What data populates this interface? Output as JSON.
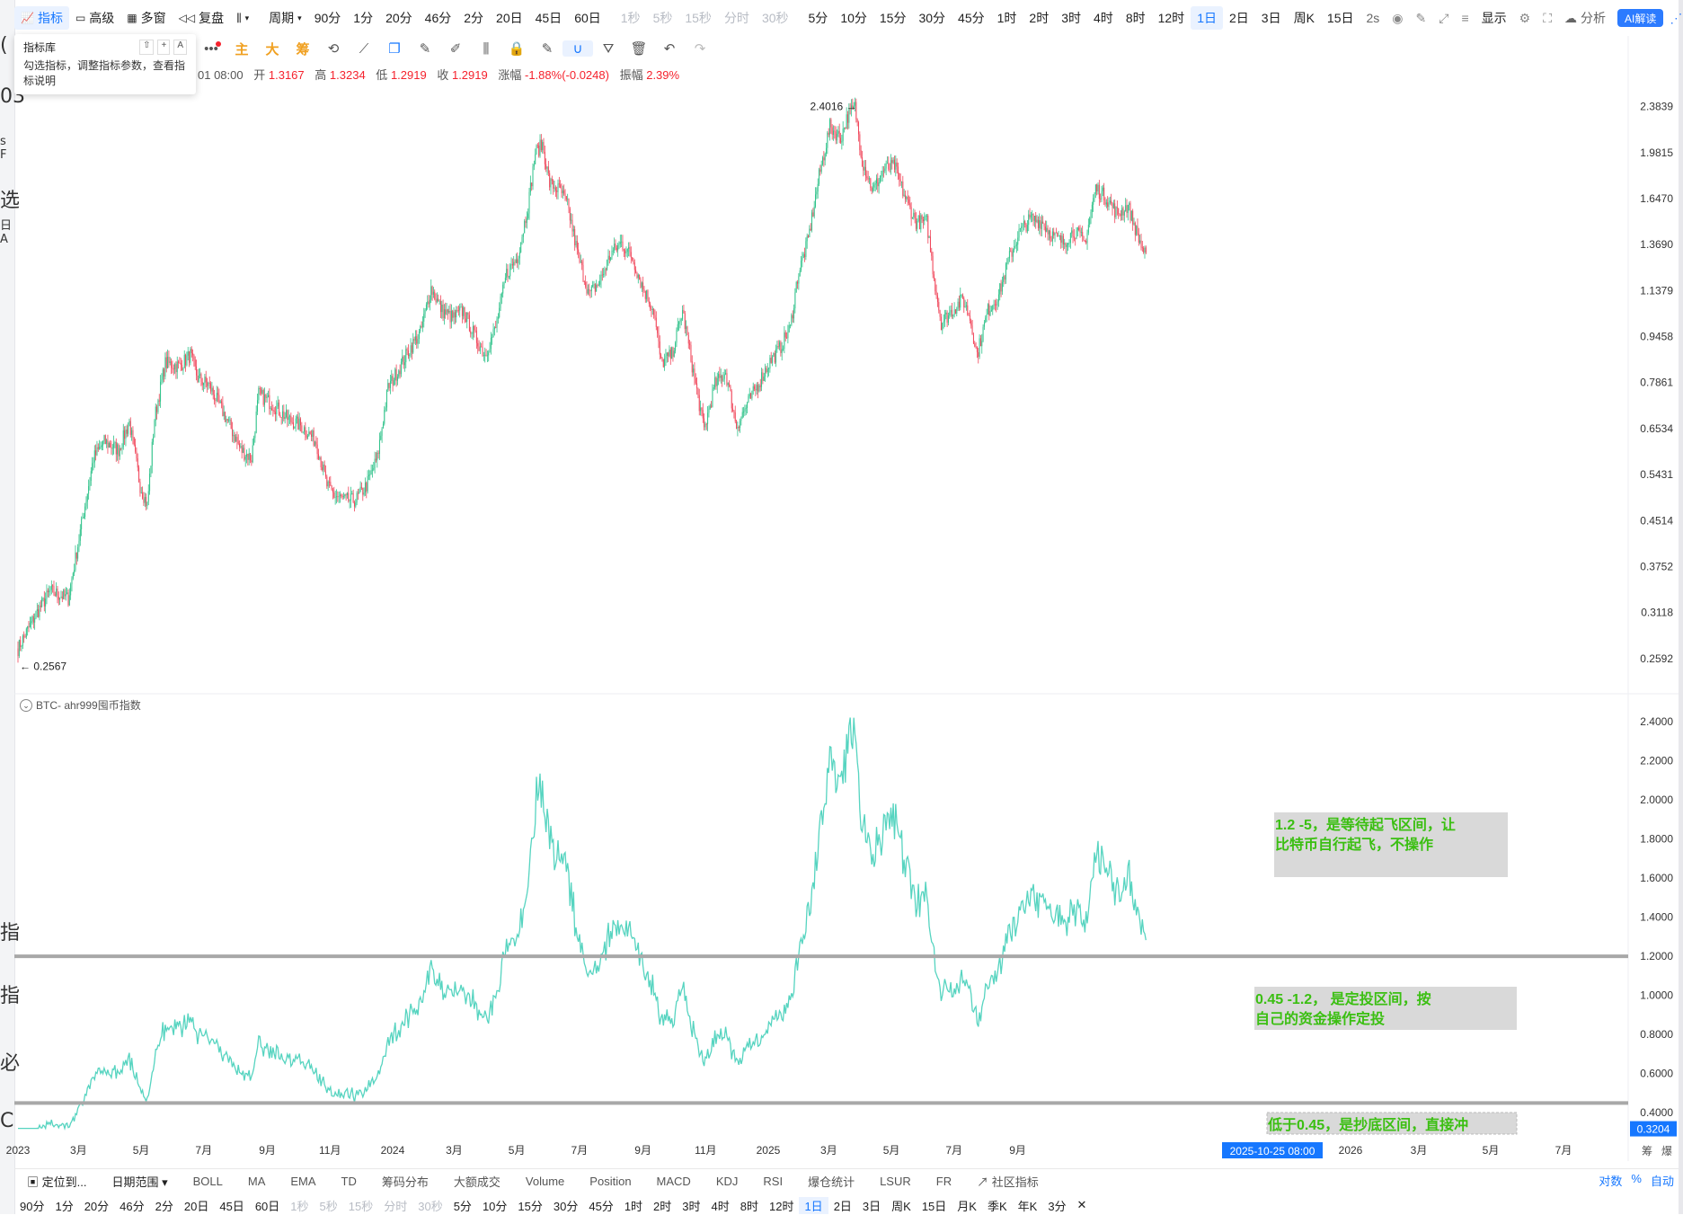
{
  "left_fragments": [
    "(",
    "03",
    "s F",
    "选",
    "日 A",
    "指",
    "指",
    "必",
    "C"
  ],
  "toolbar": {
    "items": [
      {
        "label": "指标",
        "icon": "chart-icon",
        "state": "active"
      },
      {
        "label": "高级",
        "icon": "layout-icon"
      },
      {
        "label": "多窗",
        "icon": "grid-icon"
      },
      {
        "label": "复盘",
        "icon": "rewind-icon"
      },
      {
        "label": "",
        "icon": "candle-type-icon",
        "caret": true
      },
      {
        "label": "周期",
        "caret": true
      },
      {
        "label": "90分"
      },
      {
        "label": "1分"
      },
      {
        "label": "20分"
      },
      {
        "label": "46分"
      },
      {
        "label": "2分"
      },
      {
        "label": "20日"
      },
      {
        "label": "45日"
      },
      {
        "label": "60日"
      },
      {
        "label": "1秒",
        "dim": true
      },
      {
        "label": "5秒",
        "dim": true
      },
      {
        "label": "15秒",
        "dim": true
      },
      {
        "label": "分时",
        "dim": true
      },
      {
        "label": "30秒",
        "dim": true
      },
      {
        "label": "5分"
      },
      {
        "label": "10分"
      },
      {
        "label": "15分"
      },
      {
        "label": "30分"
      },
      {
        "label": "45分"
      },
      {
        "label": "1时"
      },
      {
        "label": "2时"
      },
      {
        "label": "3时"
      },
      {
        "label": "4时"
      },
      {
        "label": "8时"
      },
      {
        "label": "12时"
      },
      {
        "label": "1日",
        "state": "active"
      },
      {
        "label": "2日"
      },
      {
        "label": "3日"
      },
      {
        "label": "周K"
      },
      {
        "label": "15日"
      }
    ],
    "right": {
      "refresh": "2s",
      "display": "显示",
      "analysis": "分析",
      "ai": "AI解读"
    }
  },
  "drawing_tools": [
    "主",
    "大",
    "筹"
  ],
  "popup": {
    "title": "指标库",
    "keys": [
      "⇧",
      "+",
      "A"
    ],
    "desc": "勾选指标，调整指标参数，查看指标说明"
  },
  "ohlc": {
    "time": "01 08:00",
    "open_label": "开",
    "open": "1.3167",
    "high_label": "高",
    "high": "1.3234",
    "low_label": "低",
    "low": "1.2919",
    "close_label": "收",
    "close": "1.2919",
    "chg_label": "涨幅",
    "chg": "-1.88%(-0.0248)",
    "amp_label": "振幅",
    "amp": "2.39%"
  },
  "indicator_label": "BTC- ahr999囤币指数",
  "chart_data": [
    {
      "type": "candlestick",
      "scale": "log",
      "ylim": [
        0.235,
        2.55
      ],
      "yticks": [
        "2.3839",
        "1.9815",
        "1.6470",
        "1.3690",
        "1.1379",
        "0.9458",
        "0.7861",
        "0.6534",
        "0.5431",
        "0.4514",
        "0.3752",
        "0.3118",
        "0.2592"
      ],
      "max_label": "2.4016 →",
      "min_label": "← 0.2567",
      "series_points": [
        [
          0,
          0.27
        ],
        [
          5,
          0.31
        ],
        [
          9,
          0.34
        ],
        [
          14,
          0.33
        ],
        [
          17,
          0.42
        ],
        [
          21,
          0.58
        ],
        [
          24,
          0.62
        ],
        [
          28,
          0.6
        ],
        [
          31,
          0.67
        ],
        [
          34,
          0.52
        ],
        [
          36,
          0.48
        ],
        [
          38,
          0.68
        ],
        [
          41,
          0.85
        ],
        [
          45,
          0.84
        ],
        [
          48,
          0.88
        ],
        [
          50,
          0.8
        ],
        [
          53,
          0.78
        ],
        [
          56,
          0.72
        ],
        [
          59,
          0.66
        ],
        [
          62,
          0.6
        ],
        [
          65,
          0.58
        ],
        [
          67,
          0.75
        ],
        [
          71,
          0.72
        ],
        [
          75,
          0.68
        ],
        [
          79,
          0.66
        ],
        [
          83,
          0.62
        ],
        [
          86,
          0.52
        ],
        [
          88,
          0.5
        ],
        [
          91,
          0.49
        ],
        [
          94,
          0.49
        ],
        [
          97,
          0.52
        ],
        [
          100,
          0.58
        ],
        [
          103,
          0.77
        ],
        [
          106,
          0.83
        ],
        [
          109,
          0.9
        ],
        [
          112,
          0.96
        ],
        [
          115,
          1.15
        ],
        [
          118,
          1.05
        ],
        [
          121,
          1.02
        ],
        [
          124,
          1.05
        ],
        [
          127,
          0.95
        ],
        [
          130,
          0.88
        ],
        [
          133,
          0.98
        ],
        [
          136,
          1.22
        ],
        [
          139,
          1.3
        ],
        [
          142,
          1.6
        ],
        [
          144,
          1.98
        ],
        [
          146,
          2.05
        ],
        [
          148,
          1.75
        ],
        [
          151,
          1.7
        ],
        [
          153,
          1.6
        ],
        [
          156,
          1.3
        ],
        [
          159,
          1.12
        ],
        [
          162,
          1.18
        ],
        [
          165,
          1.32
        ],
        [
          168,
          1.38
        ],
        [
          171,
          1.3
        ],
        [
          174,
          1.15
        ],
        [
          177,
          1.05
        ],
        [
          179,
          0.85
        ],
        [
          182,
          0.88
        ],
        [
          185,
          1.05
        ],
        [
          188,
          0.82
        ],
        [
          191,
          0.65
        ],
        [
          194,
          0.78
        ],
        [
          197,
          0.82
        ],
        [
          200,
          0.66
        ],
        [
          203,
          0.72
        ],
        [
          206,
          0.78
        ],
        [
          209,
          0.85
        ],
        [
          212,
          0.9
        ],
        [
          215,
          0.98
        ],
        [
          217,
          1.2
        ],
        [
          220,
          1.4
        ],
        [
          223,
          1.8
        ],
        [
          226,
          2.2
        ],
        [
          229,
          2.1
        ],
        [
          231,
          2.3
        ],
        [
          233,
          2.38
        ],
        [
          235,
          1.92
        ],
        [
          238,
          1.7
        ],
        [
          241,
          1.85
        ],
        [
          244,
          1.88
        ],
        [
          247,
          1.65
        ],
        [
          250,
          1.5
        ],
        [
          253,
          1.5
        ],
        [
          255,
          1.2
        ],
        [
          257,
          1.0
        ],
        [
          260,
          1.05
        ],
        [
          263,
          1.1
        ],
        [
          265,
          1.02
        ],
        [
          267,
          0.88
        ],
        [
          270,
          1.05
        ],
        [
          273,
          1.12
        ],
        [
          276,
          1.3
        ],
        [
          279,
          1.45
        ],
        [
          282,
          1.52
        ],
        [
          285,
          1.5
        ],
        [
          288,
          1.42
        ],
        [
          291,
          1.38
        ],
        [
          294,
          1.45
        ],
        [
          297,
          1.38
        ],
        [
          300,
          1.72
        ],
        [
          303,
          1.65
        ],
        [
          306,
          1.55
        ],
        [
          309,
          1.6
        ],
        [
          312,
          1.4
        ],
        [
          314,
          1.3
        ]
      ],
      "x_tick_labels": [
        "2023",
        "3月",
        "5月",
        "7月",
        "9月",
        "11月",
        "2024",
        "3月",
        "5月",
        "7月",
        "9月",
        "11月",
        "2025",
        "3月",
        "5月",
        "7月",
        "9月"
      ],
      "x_tick_days": [
        0,
        59,
        120,
        181,
        243,
        304,
        365,
        425,
        486,
        547,
        609,
        670,
        731,
        790,
        851,
        912,
        974
      ],
      "future_labels": [
        "2026",
        "3月",
        "5月",
        "7月"
      ],
      "crosshair_date": "2025-10-25 08:00"
    },
    {
      "type": "line",
      "name": "BTC- ahr999囤币指数",
      "ylim": [
        0.3,
        2.45
      ],
      "yticks": [
        "2.4000",
        "2.2000",
        "2.0000",
        "1.8000",
        "1.6000",
        "1.4000",
        "1.2000",
        "1.0000",
        "0.8000",
        "0.6000",
        "0.4000"
      ],
      "current_value": "0.3204",
      "hlines": [
        1.2,
        0.45
      ],
      "annotations": [
        {
          "text": "1.2 -5，是等待起飞区间，让比特币自行起飞，不操作"
        },
        {
          "text": "0.45 -1.2， 是定投区间，按自己的资金操作定投"
        },
        {
          "text": "低于0.45，是抄底区间，直接冲"
        }
      ]
    }
  ],
  "bottom_bar": {
    "locate": "定位到...",
    "range": "日期范围",
    "indicators": [
      "BOLL",
      "MA",
      "EMA",
      "TD",
      "筹码分布",
      "大额成交",
      "Volume",
      "Position",
      "MACD",
      "KDJ",
      "RSI",
      "爆仓统计",
      "LSUR",
      "FR",
      "社区指标"
    ],
    "right_controls": [
      "对数",
      "%",
      "自动"
    ],
    "corner": [
      "筹",
      "爆"
    ]
  },
  "period_bar": [
    {
      "label": "90分"
    },
    {
      "label": "1分"
    },
    {
      "label": "20分"
    },
    {
      "label": "46分"
    },
    {
      "label": "2分"
    },
    {
      "label": "20日"
    },
    {
      "label": "45日"
    },
    {
      "label": "60日"
    },
    {
      "label": "1秒",
      "dim": true
    },
    {
      "label": "5秒",
      "dim": true
    },
    {
      "label": "15秒",
      "dim": true
    },
    {
      "label": "分时",
      "dim": true
    },
    {
      "label": "30秒",
      "dim": true
    },
    {
      "label": "5分"
    },
    {
      "label": "10分"
    },
    {
      "label": "15分"
    },
    {
      "label": "30分"
    },
    {
      "label": "45分"
    },
    {
      "label": "1时"
    },
    {
      "label": "2时"
    },
    {
      "label": "3时"
    },
    {
      "label": "4时"
    },
    {
      "label": "8时"
    },
    {
      "label": "12时"
    },
    {
      "label": "1日",
      "active": true
    },
    {
      "label": "2日"
    },
    {
      "label": "3日"
    },
    {
      "label": "周K"
    },
    {
      "label": "15日"
    },
    {
      "label": "月K"
    },
    {
      "label": "季K"
    },
    {
      "label": "年K"
    },
    {
      "label": "3分"
    },
    {
      "label": "✕"
    }
  ]
}
